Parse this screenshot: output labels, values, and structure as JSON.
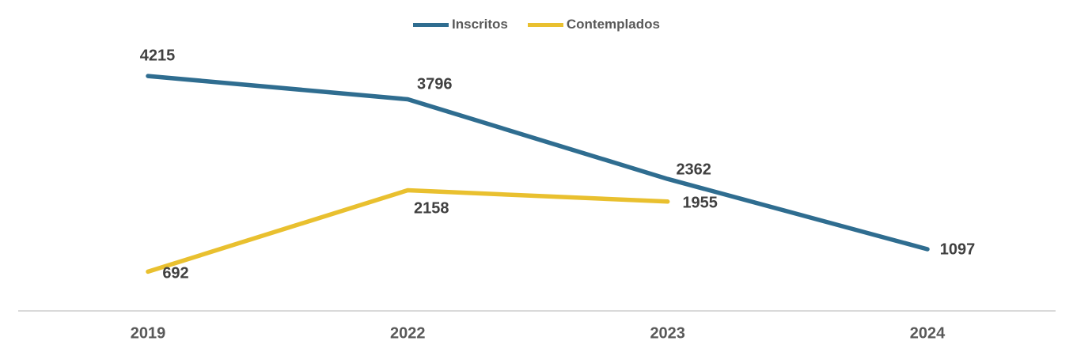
{
  "chart_data": {
    "type": "line",
    "categories": [
      "2019",
      "2022",
      "2023",
      "2024"
    ],
    "series": [
      {
        "name": "Inscritos",
        "color": "#2F6D90",
        "values": [
          4215,
          3796,
          2362,
          1097
        ]
      },
      {
        "name": "Contemplados",
        "color": "#E9C02F",
        "values": [
          692,
          2158,
          1955,
          null
        ]
      }
    ],
    "title": "",
    "xlabel": "",
    "ylabel": "",
    "ylim": [
      0,
      5580
    ],
    "grid": false,
    "legend_position": "top",
    "data_labels_visible": true,
    "colors": {
      "axis_line": "#D9D9D9",
      "data_label_text": "#404040",
      "axis_label_text": "#595959",
      "legend_text": "#595959",
      "background": "#FFFFFF"
    }
  }
}
